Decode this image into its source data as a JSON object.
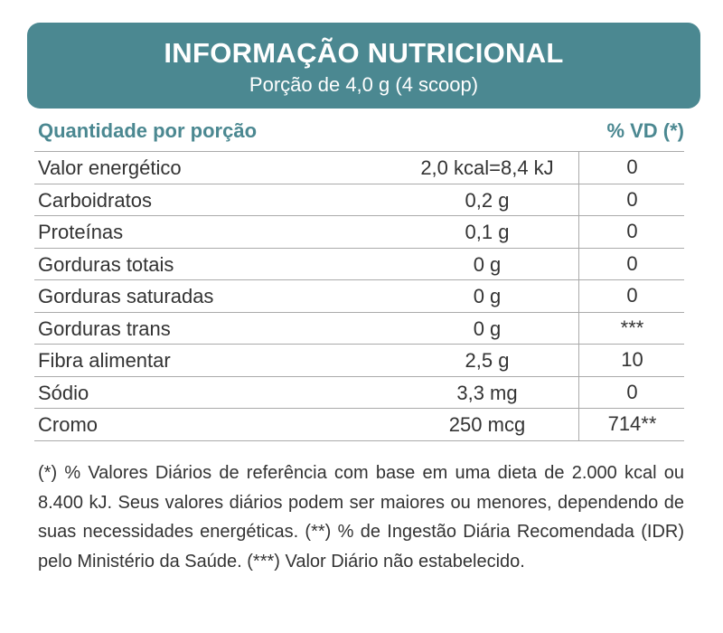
{
  "header": {
    "title": "INFORMAÇÃO NUTRICIONAL",
    "subtitle": "Porção de 4,0 g (4 scoop)"
  },
  "table": {
    "columns": [
      "Quantidade por porção",
      "% VD (*)"
    ],
    "rows": [
      [
        "Valor energético",
        "2,0 kcal=8,4 kJ",
        "0"
      ],
      [
        "Carboidratos",
        "0,2 g",
        "0"
      ],
      [
        "Proteínas",
        "0,1 g",
        "0"
      ],
      [
        "Gorduras totais",
        "0 g",
        "0"
      ],
      [
        "Gorduras saturadas",
        "0 g",
        "0"
      ],
      [
        "Gorduras trans",
        "0 g",
        "***"
      ],
      [
        "Fibra alimentar",
        "2,5 g",
        "10"
      ],
      [
        "Sódio",
        "3,3 mg",
        "0"
      ],
      [
        "Cromo",
        "250 mcg",
        "714**"
      ]
    ]
  },
  "footnote": "(*) % Valores Diários de referência com base em uma dieta de 2.000 kcal ou 8.400 kJ. Seus valores diários podem ser maiores ou menores, dependendo de suas necessidades energéticas. (**) % de Ingestão Diária Recomendada (IDR) pelo Ministério da Saúde. (***) Valor Diário não estabelecido."
}
